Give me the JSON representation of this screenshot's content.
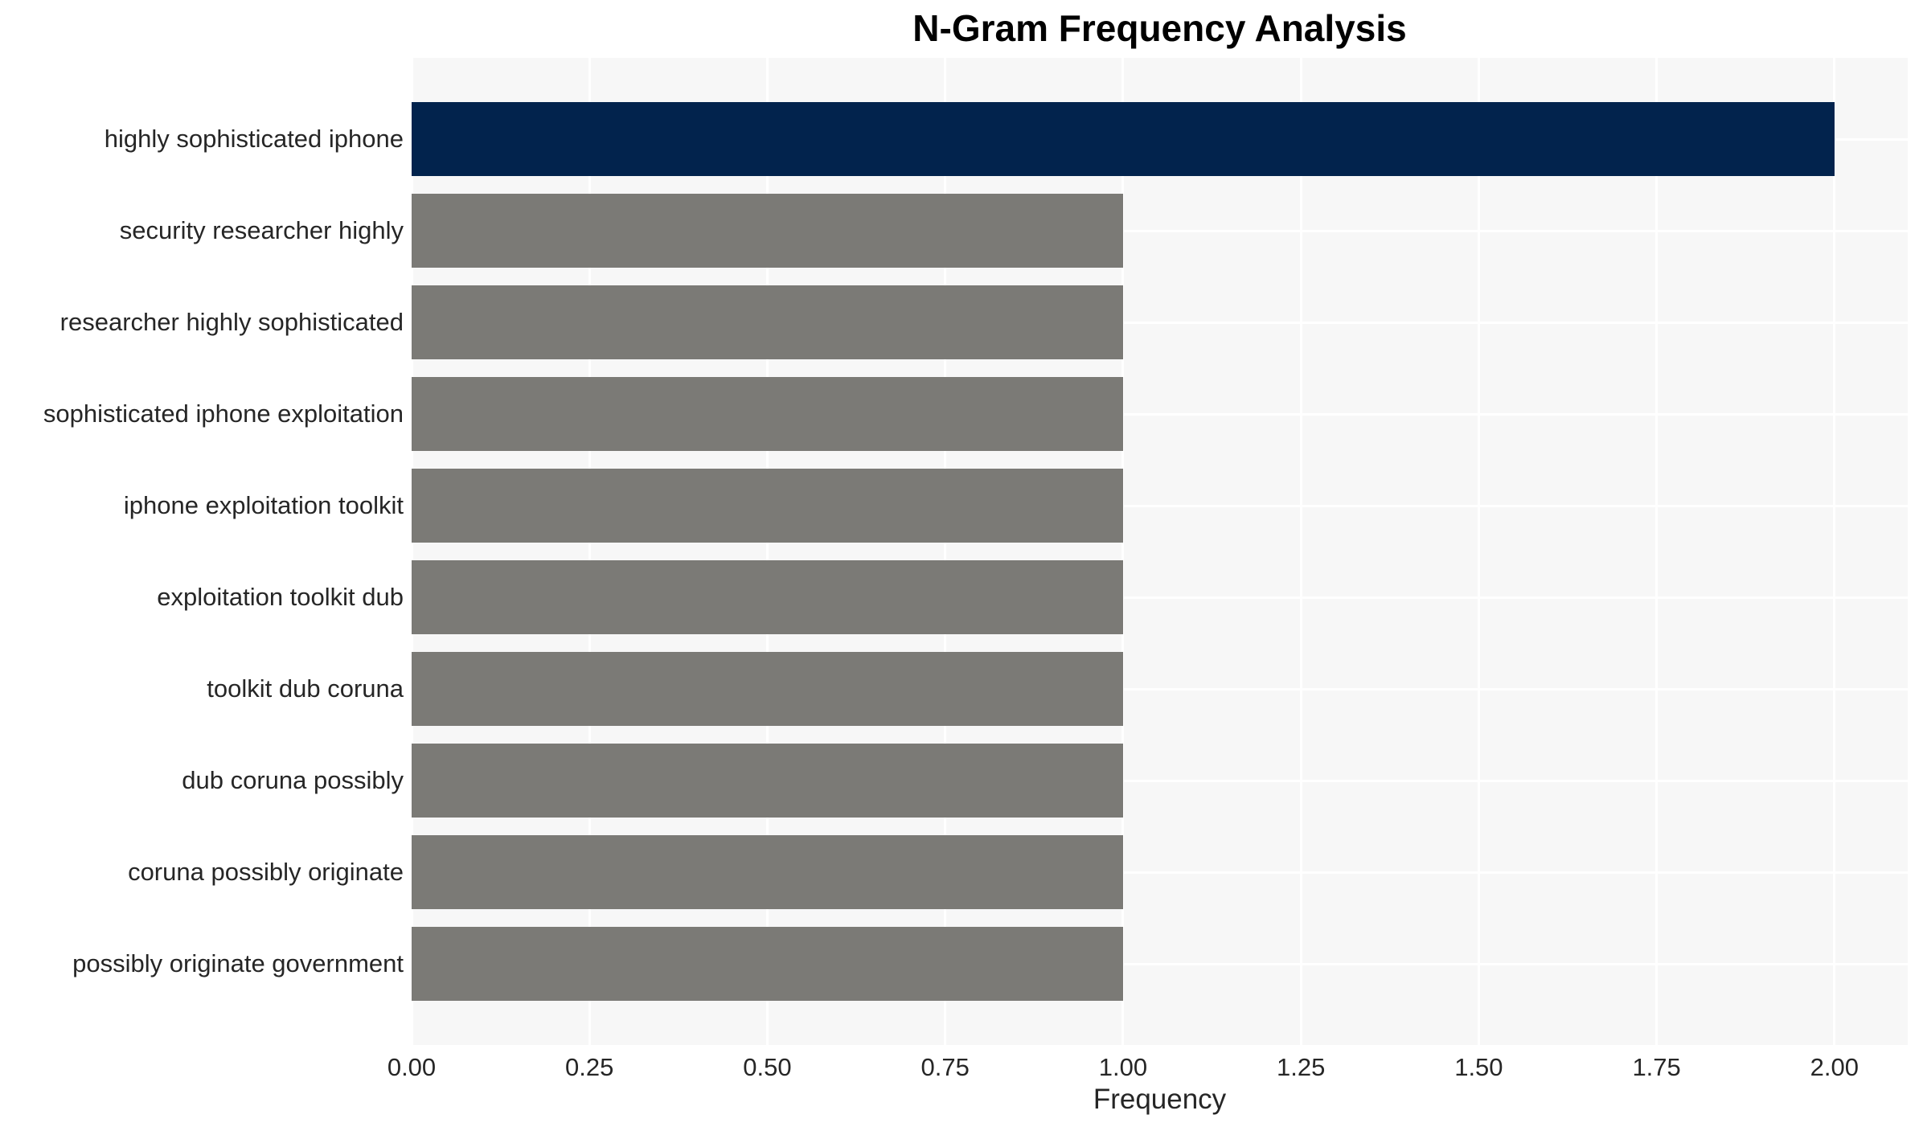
{
  "chart": {
    "plot_bg_color": "#f7f7f7",
    "grid_color": "#ffffff",
    "highlight_bar_color": "#02234d",
    "default_bar_color": "#7b7a76",
    "tick_text_color": "#262626",
    "title_text_color": "#000000"
  },
  "chart_data": {
    "type": "bar",
    "orientation": "horizontal",
    "title": "N-Gram Frequency Analysis",
    "xlabel": "Frequency",
    "ylabel": "",
    "categories": [
      "highly sophisticated iphone",
      "security researcher highly",
      "researcher highly sophisticated",
      "sophisticated iphone exploitation",
      "iphone exploitation toolkit",
      "exploitation toolkit dub",
      "toolkit dub coruna",
      "dub coruna possibly",
      "coruna possibly originate",
      "possibly originate government"
    ],
    "values": [
      2,
      1,
      1,
      1,
      1,
      1,
      1,
      1,
      1,
      1
    ],
    "bar_colors": [
      "#02234d",
      "#7b7a76",
      "#7b7a76",
      "#7b7a76",
      "#7b7a76",
      "#7b7a76",
      "#7b7a76",
      "#7b7a76",
      "#7b7a76",
      "#7b7a76"
    ],
    "xlim": [
      0,
      2.103
    ],
    "xtick_values": [
      0,
      0.25,
      0.5,
      0.75,
      1,
      1.25,
      1.5,
      1.75,
      2
    ],
    "xtick_labels": [
      "0.00",
      "0.25",
      "0.50",
      "0.75",
      "1.00",
      "1.25",
      "1.50",
      "1.75",
      "2.00"
    ],
    "grid": true,
    "legend": false
  }
}
